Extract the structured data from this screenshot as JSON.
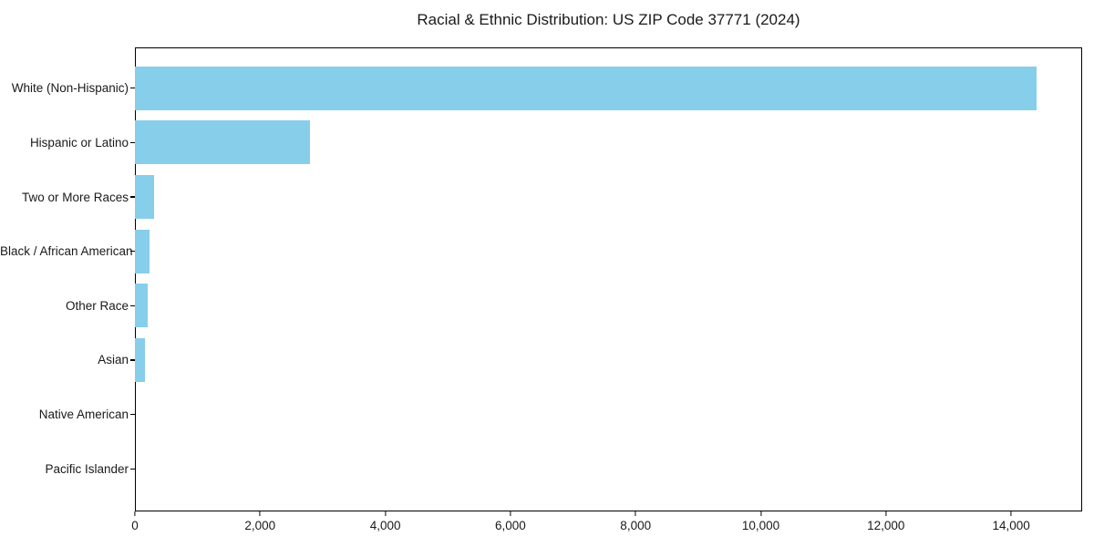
{
  "chart_data": {
    "type": "bar",
    "orientation": "horizontal",
    "title": "Racial & Ethnic Distribution: US ZIP Code 37771 (2024)",
    "xlabel": "",
    "ylabel": "",
    "categories": [
      "White (Non-Hispanic)",
      "Hispanic or Latino",
      "Two or More Races",
      "Black / African American",
      "Other Race",
      "Asian",
      "Native American",
      "Pacific Islander"
    ],
    "values": [
      14400,
      2800,
      300,
      230,
      200,
      160,
      0,
      0
    ],
    "xlim": [
      0,
      15120
    ],
    "x_ticks": [
      0,
      2000,
      4000,
      6000,
      8000,
      10000,
      12000,
      14000
    ],
    "x_tick_labels": [
      "0",
      "2,000",
      "4,000",
      "6,000",
      "8,000",
      "10,000",
      "12,000",
      "14,000"
    ],
    "bar_color": "#87CEEB",
    "text_color": "#1a1a1a",
    "grid": false,
    "legend": "none"
  }
}
